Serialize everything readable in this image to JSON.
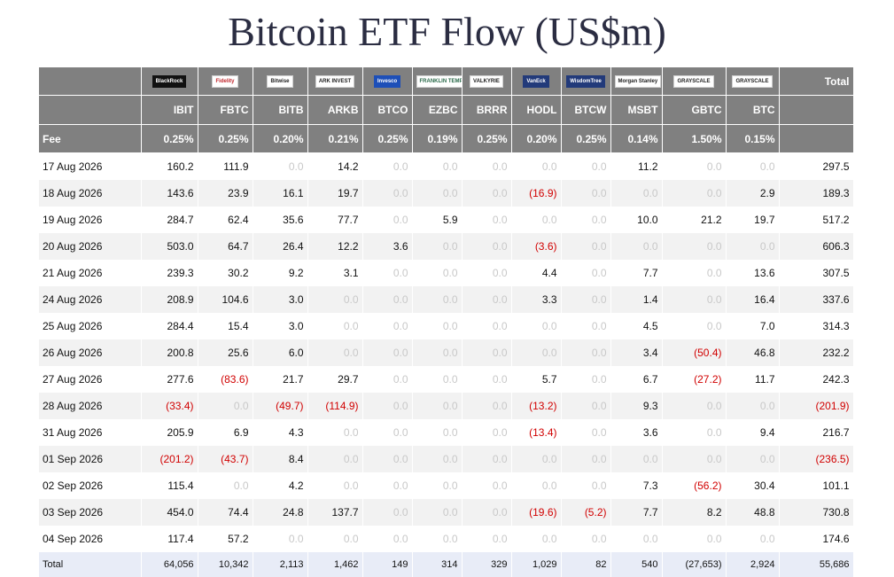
{
  "title": "Bitcoin ETF Flow (US$m)",
  "header": {
    "total_label": "Total",
    "fee_label": "Fee"
  },
  "funds": [
    {
      "logo": "BlackRock",
      "ticker": "IBIT",
      "fee": "0.25%"
    },
    {
      "logo": "Fidelity",
      "ticker": "FBTC",
      "fee": "0.25%"
    },
    {
      "logo": "Bitwise",
      "ticker": "BITB",
      "fee": "0.20%"
    },
    {
      "logo": "ARK INVEST",
      "ticker": "ARKB",
      "fee": "0.21%"
    },
    {
      "logo": "Invesco",
      "ticker": "BTCO",
      "fee": "0.25%"
    },
    {
      "logo": "FRANKLIN TEMPLETON",
      "ticker": "EZBC",
      "fee": "0.19%"
    },
    {
      "logo": "VALKYRIE",
      "ticker": "BRRR",
      "fee": "0.25%"
    },
    {
      "logo": "VanEck",
      "ticker": "HODL",
      "fee": "0.20%"
    },
    {
      "logo": "WisdomTree",
      "ticker": "BTCW",
      "fee": "0.25%"
    },
    {
      "logo": "Morgan Stanley",
      "ticker": "MSBT",
      "fee": "0.14%"
    },
    {
      "logo": "GRAYSCALE",
      "ticker": "GBTC",
      "fee": "1.50%"
    },
    {
      "logo": "GRAYSCALE",
      "ticker": "BTC",
      "fee": "0.15%"
    }
  ],
  "rows": [
    {
      "date": "17 Aug 2026",
      "values": [
        "160.2",
        "111.9",
        "0.0",
        "14.2",
        "0.0",
        "0.0",
        "0.0",
        "0.0",
        "0.0",
        "11.2",
        "0.0",
        "0.0"
      ],
      "total": "297.5"
    },
    {
      "date": "18 Aug 2026",
      "values": [
        "143.6",
        "23.9",
        "16.1",
        "19.7",
        "0.0",
        "0.0",
        "0.0",
        "(16.9)",
        "0.0",
        "0.0",
        "0.0",
        "2.9"
      ],
      "total": "189.3"
    },
    {
      "date": "19 Aug 2026",
      "values": [
        "284.7",
        "62.4",
        "35.6",
        "77.7",
        "0.0",
        "5.9",
        "0.0",
        "0.0",
        "0.0",
        "10.0",
        "21.2",
        "19.7"
      ],
      "total": "517.2"
    },
    {
      "date": "20 Aug 2026",
      "values": [
        "503.0",
        "64.7",
        "26.4",
        "12.2",
        "3.6",
        "0.0",
        "0.0",
        "(3.6)",
        "0.0",
        "0.0",
        "0.0",
        "0.0"
      ],
      "total": "606.3"
    },
    {
      "date": "21 Aug 2026",
      "values": [
        "239.3",
        "30.2",
        "9.2",
        "3.1",
        "0.0",
        "0.0",
        "0.0",
        "4.4",
        "0.0",
        "7.7",
        "0.0",
        "13.6"
      ],
      "total": "307.5"
    },
    {
      "date": "24 Aug 2026",
      "values": [
        "208.9",
        "104.6",
        "3.0",
        "0.0",
        "0.0",
        "0.0",
        "0.0",
        "3.3",
        "0.0",
        "1.4",
        "0.0",
        "16.4"
      ],
      "total": "337.6"
    },
    {
      "date": "25 Aug 2026",
      "values": [
        "284.4",
        "15.4",
        "3.0",
        "0.0",
        "0.0",
        "0.0",
        "0.0",
        "0.0",
        "0.0",
        "4.5",
        "0.0",
        "7.0"
      ],
      "total": "314.3"
    },
    {
      "date": "26 Aug 2026",
      "values": [
        "200.8",
        "25.6",
        "6.0",
        "0.0",
        "0.0",
        "0.0",
        "0.0",
        "0.0",
        "0.0",
        "3.4",
        "(50.4)",
        "46.8"
      ],
      "total": "232.2"
    },
    {
      "date": "27 Aug 2026",
      "values": [
        "277.6",
        "(83.6)",
        "21.7",
        "29.7",
        "0.0",
        "0.0",
        "0.0",
        "5.7",
        "0.0",
        "6.7",
        "(27.2)",
        "11.7"
      ],
      "total": "242.3"
    },
    {
      "date": "28 Aug 2026",
      "values": [
        "(33.4)",
        "0.0",
        "(49.7)",
        "(114.9)",
        "0.0",
        "0.0",
        "0.0",
        "(13.2)",
        "0.0",
        "9.3",
        "0.0",
        "0.0"
      ],
      "total": "(201.9)"
    },
    {
      "date": "31 Aug 2026",
      "values": [
        "205.9",
        "6.9",
        "4.3",
        "0.0",
        "0.0",
        "0.0",
        "0.0",
        "(13.4)",
        "0.0",
        "3.6",
        "0.0",
        "9.4"
      ],
      "total": "216.7"
    },
    {
      "date": "01 Sep 2026",
      "values": [
        "(201.2)",
        "(43.7)",
        "8.4",
        "0.0",
        "0.0",
        "0.0",
        "0.0",
        "0.0",
        "0.0",
        "0.0",
        "0.0",
        "0.0"
      ],
      "total": "(236.5)"
    },
    {
      "date": "02 Sep 2026",
      "values": [
        "115.4",
        "0.0",
        "4.2",
        "0.0",
        "0.0",
        "0.0",
        "0.0",
        "0.0",
        "0.0",
        "7.3",
        "(56.2)",
        "30.4"
      ],
      "total": "101.1"
    },
    {
      "date": "03 Sep 2026",
      "values": [
        "454.0",
        "74.4",
        "24.8",
        "137.7",
        "0.0",
        "0.0",
        "0.0",
        "(19.6)",
        "(5.2)",
        "7.7",
        "8.2",
        "48.8"
      ],
      "total": "730.8"
    },
    {
      "date": "04 Sep 2026",
      "values": [
        "117.4",
        "57.2",
        "0.0",
        "0.0",
        "0.0",
        "0.0",
        "0.0",
        "0.0",
        "0.0",
        "0.0",
        "0.0",
        "0.0"
      ],
      "total": "174.6"
    }
  ],
  "totals": {
    "label": "Total",
    "values": [
      "64,056",
      "10,342",
      "2,113",
      "1,462",
      "149",
      "314",
      "329",
      "1,029",
      "82",
      "540",
      "(27,653)",
      "2,924"
    ],
    "total": "55,686"
  },
  "colors": {
    "header_bg": "#808080",
    "negative": "#d10000",
    "zero": "#c8c8c8",
    "total_row_bg": "#e8ecf7"
  }
}
